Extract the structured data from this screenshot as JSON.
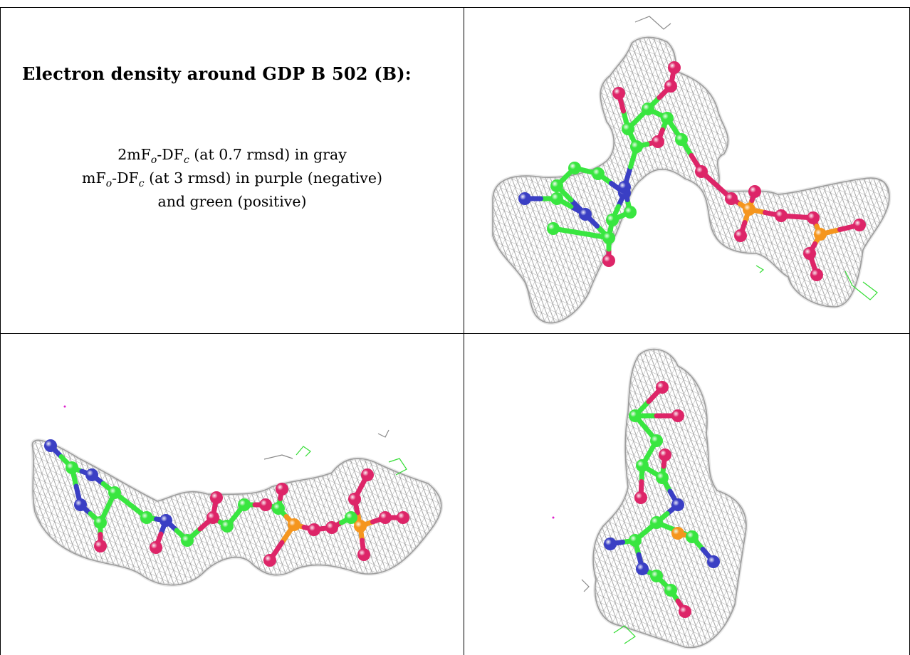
{
  "title": "Electron density around GDP B 502 (B):",
  "legend": {
    "line1": {
      "a": "2mF",
      "sub1": "o",
      "b": "-DF",
      "sub2": "c",
      "c": " (at 0.7 rmsd) in gray"
    },
    "line2": {
      "a": "mF",
      "sub1": "o",
      "b": "-DF",
      "sub2": "c",
      "c": " (at 3 rmsd) in purple (negative)"
    },
    "line3": "and green (positive)"
  },
  "colors": {
    "mesh": "#8c8c8c",
    "carbon": "#39e640",
    "oxygen": "#dd2568",
    "nitrogen": "#3a3fc4",
    "phosphorus": "#f5961e",
    "positive_density": "#33dd33",
    "negative_density": "#dd22cc"
  }
}
